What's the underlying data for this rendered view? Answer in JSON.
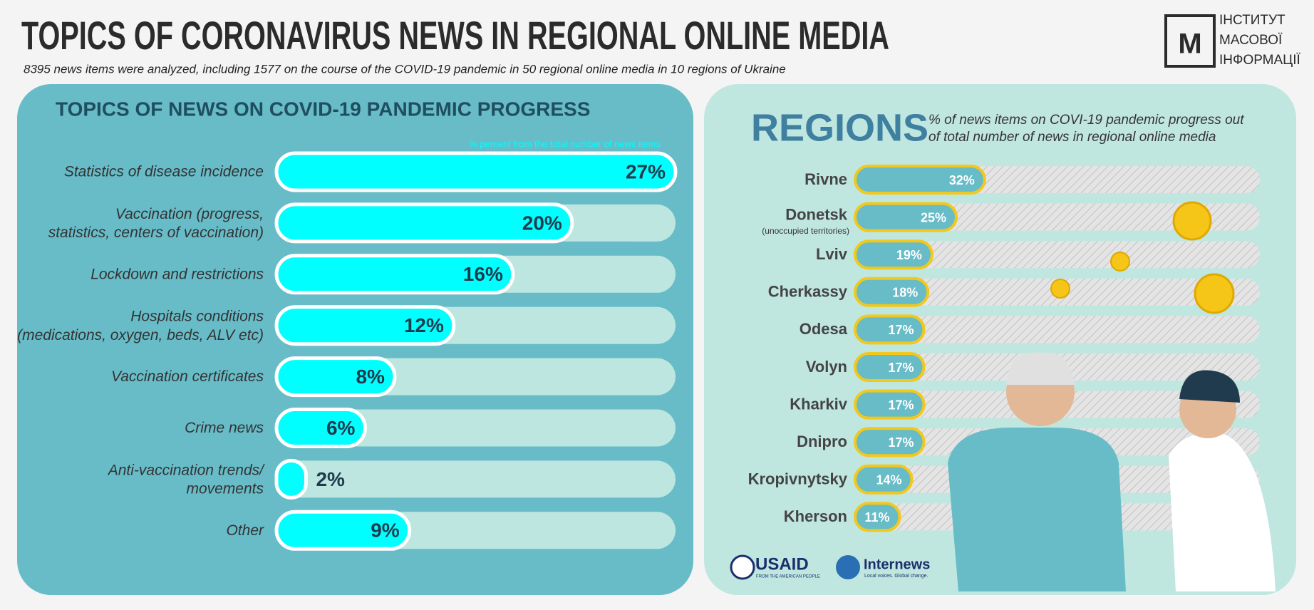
{
  "header": {
    "title": "TOPICS OF CORONAVIRUS NEWS IN REGIONAL ONLINE MEDIA",
    "subtitle": "8395 news items were analyzed, including 1577 on the course of the COVID-19 pandemic in 50 regional online media in 10 regions of Ukraine",
    "logo_text": [
      "ІНСТИТУТ",
      "МАСОВОЇ",
      "ІНФОРМАЦІЇ"
    ]
  },
  "chart_data": [
    {
      "type": "bar",
      "orientation": "horizontal",
      "title": "TOPICS OF NEWS ON COVID-19 PANDEMIC PROGRESS",
      "note": "% percent from the total number of news items",
      "categories": [
        "Statistics of disease incidence",
        "Vaccination (progress,\nstatistics, centers of vaccination)",
        "Lockdown and restrictions",
        "Hospitals conditions\n(medications, oxygen, beds, ALV etc)",
        "Vaccination certificates",
        "Crime news",
        "Anti-vaccination trends/\nmovements",
        "Other"
      ],
      "values": [
        27,
        20,
        16,
        12,
        8,
        6,
        2,
        9
      ],
      "value_labels": [
        "27%",
        "20%",
        "16%",
        "12%",
        "8%",
        "6%",
        "2%",
        "9%"
      ],
      "xlim": [
        0,
        27
      ],
      "color": "#00ffff"
    },
    {
      "type": "bar",
      "orientation": "horizontal",
      "title": "REGIONS",
      "subtitle": "% of news items on COVI-19 pandemic progress out\nof total number of news in regional online media",
      "categories": [
        "Rivne",
        "Donetsk",
        "Lviv",
        "Cherkassy",
        "Odesa",
        "Volyn",
        "Kharkiv",
        "Dnipro",
        "Kropivnytsky",
        "Kherson"
      ],
      "category_notes": [
        null,
        "(unoccupied territories)",
        null,
        null,
        null,
        null,
        null,
        null,
        null,
        null
      ],
      "values": [
        32,
        25,
        19,
        18,
        17,
        17,
        17,
        17,
        14,
        11
      ],
      "value_labels": [
        "32%",
        "25%",
        "19%",
        "18%",
        "17%",
        "17%",
        "17%",
        "17%",
        "14%",
        "11%"
      ],
      "xlim": [
        0,
        100
      ],
      "color": "#67bcc8"
    }
  ],
  "logos": {
    "usaid": "USAID",
    "usaid_tagline": "FROM THE AMERICAN PEOPLE",
    "internews": "Internews",
    "internews_tagline": "Local voices. Global change."
  }
}
